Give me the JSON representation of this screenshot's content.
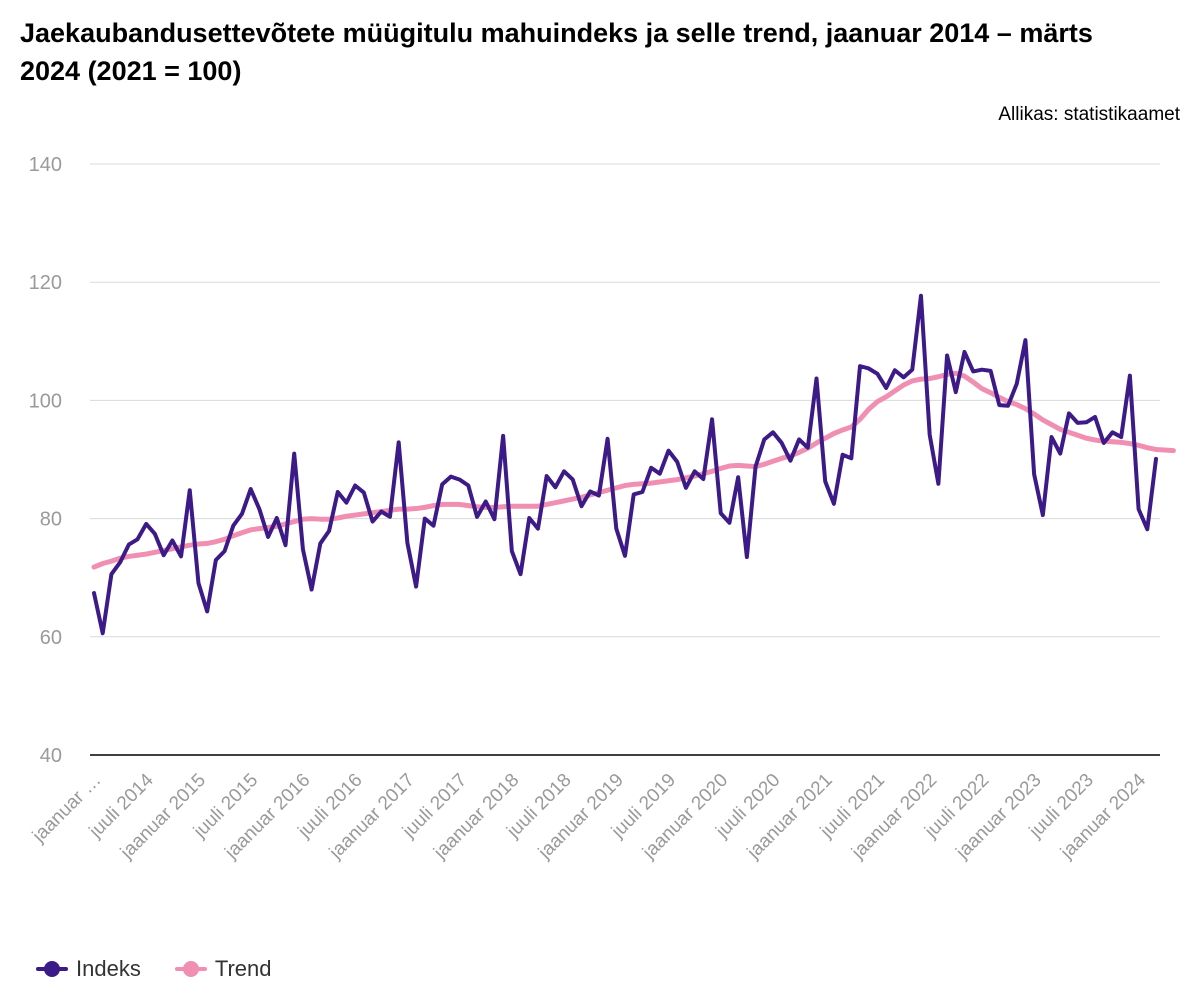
{
  "title": "Jaekaubandusettevõtete müügitulu mahuindeks ja selle trend, jaanuar 2014 – märts 2024 (2021 = 100)",
  "source": "Allikas: statistikaamet",
  "colors": {
    "indeks": "#3c1a87",
    "trend": "#f08fb2",
    "grid": "#d9d9d9",
    "axis": "#000000",
    "tick": "#9a9a9a"
  },
  "chart_data": {
    "type": "line",
    "title": "Jaekaubandusettevõtete müügitulu mahuindeks ja selle trend, jaanuar 2014 – märts 2024 (2021 = 100)",
    "ylim": [
      40,
      140
    ],
    "yticks": [
      40,
      60,
      80,
      100,
      120,
      140
    ],
    "grid": true,
    "legend_position": "bottom-left",
    "x_start": "jaanuar 2014",
    "x_end": "märts 2024",
    "xtick_labels": [
      "jaanuar …",
      "juuli 2014",
      "jaanuar 2015",
      "juuli 2015",
      "jaanuar 2016",
      "juuli 2016",
      "jaanuar 2017",
      "juuli 2017",
      "jaanuar 2018",
      "juuli 2018",
      "jaanuar 2019",
      "juuli 2019",
      "jaanuar 2020",
      "juuli 2020",
      "jaanuar 2021",
      "juuli 2021",
      "jaanuar 2022",
      "juuli 2022",
      "jaanuar 2023",
      "juuli 2023",
      "jaanuar 2024"
    ],
    "series": [
      {
        "name": "Indeks",
        "values": [
          67.4,
          60.6,
          70.6,
          72.6,
          75.6,
          76.5,
          79.1,
          77.4,
          73.8,
          76.3,
          73.6,
          84.8,
          69.1,
          64.3,
          73.0,
          74.5,
          78.8,
          80.8,
          85.0,
          81.6,
          76.9,
          80.1,
          75.5,
          91.0,
          74.8,
          68.0,
          75.8,
          77.9,
          84.5,
          82.7,
          85.6,
          84.4,
          79.5,
          81.2,
          80.3,
          92.9,
          75.9,
          68.5,
          80.0,
          78.8,
          85.8,
          87.1,
          86.6,
          85.6,
          80.3,
          82.9,
          79.9,
          94.0,
          74.5,
          70.6,
          80.1,
          78.3,
          87.2,
          85.3,
          88.0,
          86.6,
          82.1,
          84.6,
          83.9,
          93.5,
          78.3,
          73.7,
          84.1,
          84.5,
          88.6,
          87.6,
          91.5,
          89.6,
          85.2,
          88.0,
          86.7,
          96.8,
          80.9,
          79.3,
          87.0,
          73.5,
          88.8,
          93.4,
          94.6,
          92.8,
          89.8,
          93.4,
          92.0,
          103.7,
          86.3,
          82.5,
          90.8,
          90.2,
          105.8,
          105.4,
          104.5,
          102.1,
          105.1,
          103.9,
          105.2,
          117.7,
          94.2,
          85.9,
          107.6,
          101.4,
          108.2,
          104.9,
          105.2,
          105.0,
          99.2,
          99.1,
          102.8,
          110.2,
          87.5,
          80.6,
          93.8,
          91.0,
          97.8,
          96.2,
          96.3,
          97.2,
          92.8,
          94.6,
          93.8,
          104.2,
          81.6,
          78.2,
          90.1
        ]
      },
      {
        "name": "Trend",
        "values": [
          71.8,
          72.4,
          72.8,
          73.3,
          73.6,
          73.8,
          74.0,
          74.3,
          74.6,
          74.9,
          75.2,
          75.5,
          75.7,
          75.8,
          76.1,
          76.5,
          77.1,
          77.6,
          78.1,
          78.3,
          78.5,
          78.7,
          79.1,
          79.5,
          79.9,
          80.0,
          79.9,
          79.9,
          80.1,
          80.4,
          80.6,
          80.8,
          81.0,
          81.2,
          81.4,
          81.6,
          81.6,
          81.7,
          81.9,
          82.2,
          82.4,
          82.4,
          82.4,
          82.2,
          82.0,
          81.9,
          81.9,
          82.0,
          82.1,
          82.1,
          82.1,
          82.1,
          82.4,
          82.7,
          83.0,
          83.3,
          83.6,
          84.0,
          84.4,
          84.8,
          85.2,
          85.6,
          85.8,
          85.9,
          86.0,
          86.2,
          86.4,
          86.6,
          86.9,
          87.2,
          87.6,
          88.0,
          88.5,
          88.9,
          89.0,
          88.9,
          88.8,
          89.2,
          89.7,
          90.2,
          90.6,
          91.2,
          91.9,
          92.8,
          93.6,
          94.4,
          95.0,
          95.5,
          96.8,
          98.5,
          99.8,
          100.6,
          101.6,
          102.6,
          103.3,
          103.6,
          103.7,
          104.0,
          104.4,
          104.6,
          104.1,
          103.1,
          102.0,
          101.3,
          100.5,
          99.8,
          99.3,
          98.6,
          97.7,
          96.7,
          95.9,
          95.1,
          94.6,
          94.1,
          93.6,
          93.3,
          93.1,
          93.0,
          92.9,
          92.7,
          92.4,
          92.0,
          91.7,
          91.6,
          91.5
        ]
      }
    ]
  }
}
